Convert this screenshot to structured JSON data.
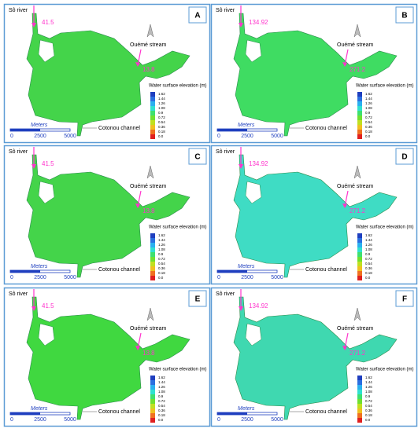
{
  "legend": {
    "title": "Water surface elevation (m)",
    "labels": [
      "1.62",
      "1.44",
      "1.26",
      "1.08",
      "0.9",
      "0.72",
      "0.54",
      "0.36",
      "0.18",
      "0.0"
    ]
  },
  "scale": {
    "unit": "Meters",
    "labels": [
      "0",
      "2500",
      "5000"
    ]
  },
  "panels": [
    {
      "letter": "A",
      "river": "Sô river",
      "river_value": "41.5",
      "stream": "Ouémé stream",
      "stream_value": "13.8",
      "channel": "Cotonou channel",
      "color": "#44d44a"
    },
    {
      "letter": "B",
      "river": "Sô river",
      "river_value": "134.92",
      "stream": "Ouémé stream",
      "stream_value": "271.2",
      "channel": "Cotonou channel",
      "color": "#3fdc62"
    },
    {
      "letter": "C",
      "river": "Sô river",
      "river_value": "41.5",
      "stream": "Ouémé stream",
      "stream_value": "13.8",
      "channel": "Cotonou channel",
      "color": "#44d44a"
    },
    {
      "letter": "D",
      "river": "Sô river",
      "river_value": "134.92",
      "stream": "Ouémé stream",
      "stream_value": "271.2",
      "channel": "Cotonou channel",
      "color": "#3fdcc4"
    },
    {
      "letter": "E",
      "river": "Sô river",
      "river_value": "41.5",
      "stream": "Ouémé stream",
      "stream_value": "13.8",
      "channel": "Cotonou channel",
      "color": "#40d840"
    },
    {
      "letter": "F",
      "river": "Sô river",
      "river_value": "134.92",
      "stream": "Ouémé stream",
      "stream_value": "271.2",
      "channel": "Cotonou channel",
      "color": "#3fd8b0"
    }
  ]
}
